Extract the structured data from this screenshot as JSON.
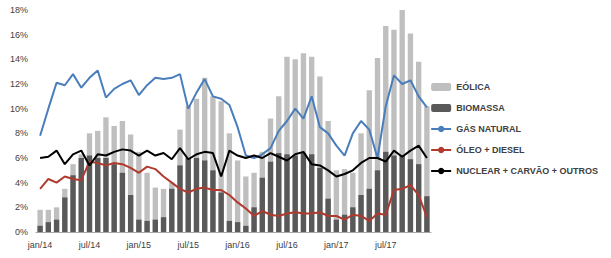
{
  "chart_data": {
    "type": "bar",
    "categories": [
      "jan/14",
      null,
      null,
      null,
      null,
      null,
      "jul/14",
      null,
      null,
      null,
      null,
      null,
      "jan/15",
      null,
      null,
      null,
      null,
      null,
      "jul/15",
      null,
      null,
      null,
      null,
      null,
      "jan/16",
      null,
      null,
      null,
      null,
      null,
      "jul/16",
      null,
      null,
      null,
      null,
      null,
      "jan/17",
      null,
      null,
      null,
      null,
      null,
      "jul/17",
      null,
      null,
      null,
      null,
      null
    ],
    "series": [
      {
        "name": "EÓLICA",
        "type": "bar",
        "color": "#bfbfbf",
        "values": [
          1.8,
          1.8,
          2.0,
          3.5,
          5.5,
          6.3,
          8.0,
          8.2,
          9.3,
          8.6,
          9.0,
          7.9,
          6.5,
          4.8,
          3.6,
          3.5,
          4.0,
          8.3,
          10.2,
          10.8,
          12.5,
          11.0,
          10.6,
          8.0,
          5.8,
          4.5,
          4.8,
          6.5,
          9.2,
          11.0,
          14.2,
          14.0,
          14.5,
          14.2,
          12.6,
          9.0,
          5.0,
          5.1,
          4.8,
          8.0,
          11.5,
          14.1,
          16.7,
          16.4,
          18.0,
          16.1,
          13.8,
          10.2
        ]
      },
      {
        "name": "BIOMASSA",
        "type": "bar",
        "color": "#595959",
        "values": [
          0.5,
          0.8,
          1.0,
          2.8,
          4.6,
          6.0,
          6.2,
          6.0,
          6.0,
          5.5,
          4.8,
          3.0,
          1.0,
          0.9,
          1.0,
          1.2,
          3.5,
          5.4,
          6.0,
          6.0,
          5.8,
          5.0,
          3.2,
          0.9,
          0.8,
          0.5,
          2.0,
          4.4,
          5.7,
          6.4,
          6.3,
          6.2,
          6.4,
          6.3,
          5.2,
          2.7,
          1.0,
          1.4,
          2.0,
          3.0,
          3.5,
          5.0,
          6.5,
          6.2,
          6.2,
          5.9,
          5.5,
          2.9
        ]
      },
      {
        "name": "GÁS NATURAL",
        "type": "line",
        "color": "#4a7ebb",
        "values": [
          7.8,
          10.0,
          12.1,
          11.9,
          12.8,
          11.7,
          12.5,
          13.1,
          10.9,
          11.6,
          12.0,
          12.3,
          11.1,
          11.9,
          12.5,
          12.4,
          12.5,
          12.8,
          10.0,
          11.3,
          12.4,
          11.0,
          10.8,
          10.3,
          8.5,
          6.2,
          6.0,
          6.3,
          6.8,
          8.2,
          9.0,
          10.0,
          9.2,
          11.0,
          8.5,
          8.0,
          7.0,
          6.2,
          8.0,
          9.0,
          8.3,
          6.0,
          10.2,
          12.7,
          12.0,
          12.3,
          11.0,
          10.1
        ]
      },
      {
        "name": "ÓLEO + DIESEL",
        "type": "line",
        "color": "#b03a2e",
        "values": [
          3.5,
          4.3,
          4.0,
          4.5,
          4.3,
          4.2,
          5.7,
          5.6,
          5.4,
          5.6,
          5.5,
          5.2,
          4.8,
          5.3,
          5.1,
          4.5,
          4.0,
          3.5,
          3.2,
          3.5,
          3.6,
          3.4,
          3.4,
          3.0,
          2.4,
          1.9,
          1.3,
          1.7,
          1.4,
          1.3,
          1.5,
          1.6,
          1.5,
          1.5,
          1.6,
          1.3,
          1.3,
          1.0,
          1.4,
          1.3,
          0.9,
          1.5,
          1.4,
          3.4,
          3.5,
          3.8,
          3.0,
          1.2
        ]
      },
      {
        "name": "NUCLEAR + CARVÃO + OUTROS",
        "type": "line",
        "color": "#000000",
        "values": [
          6.0,
          6.1,
          6.6,
          5.5,
          6.3,
          6.6,
          5.4,
          6.3,
          6.2,
          6.5,
          6.7,
          6.6,
          6.2,
          6.6,
          6.2,
          6.4,
          5.9,
          6.8,
          5.9,
          6.3,
          6.5,
          6.4,
          4.5,
          6.6,
          6.2,
          6.0,
          6.2,
          6.0,
          6.4,
          6.1,
          5.8,
          6.3,
          6.5,
          5.5,
          5.4,
          5.0,
          4.5,
          4.7,
          5.0,
          5.6,
          6.0,
          6.0,
          5.7,
          6.6,
          6.1,
          6.6,
          7.0,
          6.0
        ]
      }
    ],
    "ylim": [
      0,
      18
    ],
    "yticks": [
      {
        "value": 0,
        "label": "0%"
      },
      {
        "value": 2,
        "label": "2%"
      },
      {
        "value": 4,
        "label": "4%"
      },
      {
        "value": 6,
        "label": "6%"
      },
      {
        "value": 8,
        "label": "8%"
      },
      {
        "value": 10,
        "label": "10%"
      },
      {
        "value": 12,
        "label": "12%"
      },
      {
        "value": 14,
        "label": "14%"
      },
      {
        "value": 16,
        "label": "16%"
      },
      {
        "value": 18,
        "label": "18%"
      }
    ],
    "grid": false,
    "legend": "right"
  }
}
